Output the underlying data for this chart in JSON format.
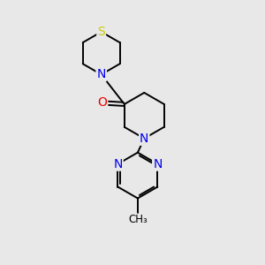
{
  "bg_color": "#e8e8e8",
  "bond_color": "#000000",
  "S_color": "#cccc00",
  "N_color": "#0000ee",
  "O_color": "#ee0000",
  "C_color": "#000000",
  "font_size": 10,
  "figsize": [
    3.0,
    3.0
  ],
  "dpi": 100,
  "lw": 1.4,
  "xlim": [
    0,
    10
  ],
  "ylim": [
    0,
    10
  ]
}
